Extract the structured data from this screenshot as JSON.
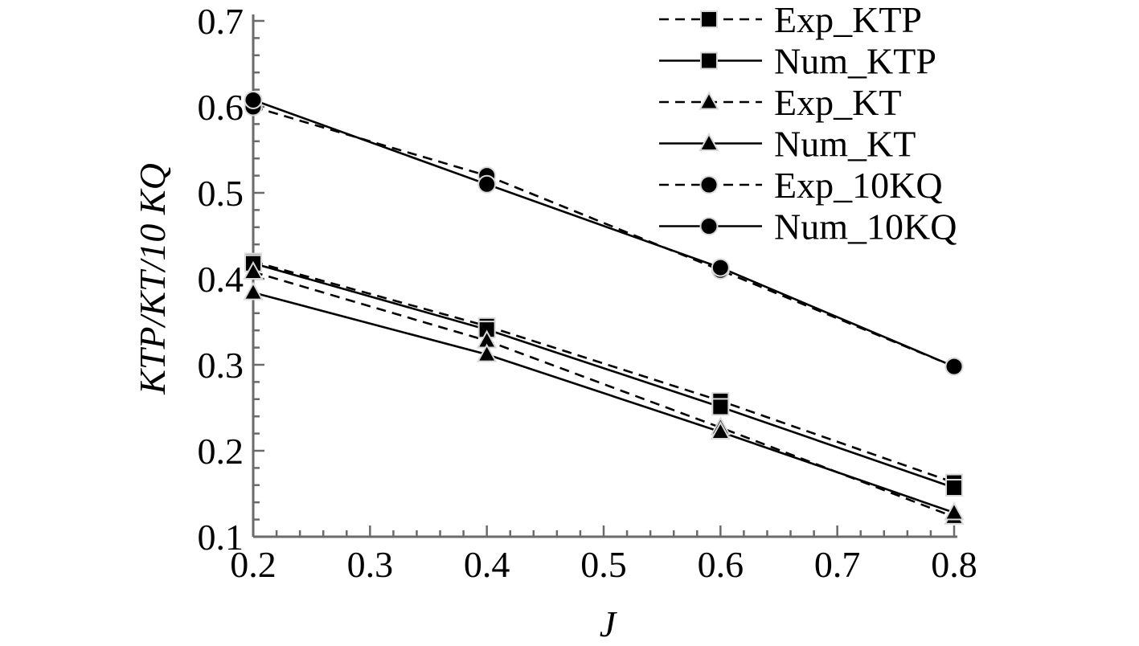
{
  "chart_data": {
    "type": "line",
    "xlabel": "J",
    "ylabel": "KTP/KT/10 KQ",
    "xlim": [
      0.2,
      0.8
    ],
    "ylim": [
      0.1,
      0.7
    ],
    "x_ticks": [
      "0.2",
      "0.3",
      "0.4",
      "0.5",
      "0.6",
      "0.7",
      "0.8"
    ],
    "y_ticks": [
      "0.1",
      "0.2",
      "0.3",
      "0.4",
      "0.5",
      "0.6",
      "0.7"
    ],
    "grid": false,
    "legend_position": "top-right",
    "series": [
      {
        "name": "Exp_KTP",
        "marker": "square",
        "line": "dashed",
        "x": [
          0.2,
          0.4,
          0.6,
          0.8
        ],
        "y": [
          0.42,
          0.345,
          0.258,
          0.163
        ]
      },
      {
        "name": "Num_KTP",
        "marker": "square",
        "line": "solid",
        "x": [
          0.2,
          0.4,
          0.6,
          0.8
        ],
        "y": [
          0.418,
          0.341,
          0.251,
          0.157
        ]
      },
      {
        "name": "Exp_KT",
        "marker": "triangle",
        "line": "dashed",
        "x": [
          0.2,
          0.4,
          0.6,
          0.8
        ],
        "y": [
          0.408,
          0.328,
          0.227,
          0.123
        ]
      },
      {
        "name": "Num_KT",
        "marker": "triangle",
        "line": "solid",
        "x": [
          0.2,
          0.4,
          0.6,
          0.8
        ],
        "y": [
          0.384,
          0.312,
          0.222,
          0.128
        ]
      },
      {
        "name": "Exp_10KQ",
        "marker": "circle",
        "line": "dashed",
        "x": [
          0.2,
          0.4,
          0.6,
          0.8
        ],
        "y": [
          0.6,
          0.52,
          0.41,
          0.298
        ]
      },
      {
        "name": "Num_10KQ",
        "marker": "circle",
        "line": "solid",
        "x": [
          0.2,
          0.4,
          0.6,
          0.8
        ],
        "y": [
          0.608,
          0.51,
          0.413,
          0.298
        ]
      }
    ]
  }
}
